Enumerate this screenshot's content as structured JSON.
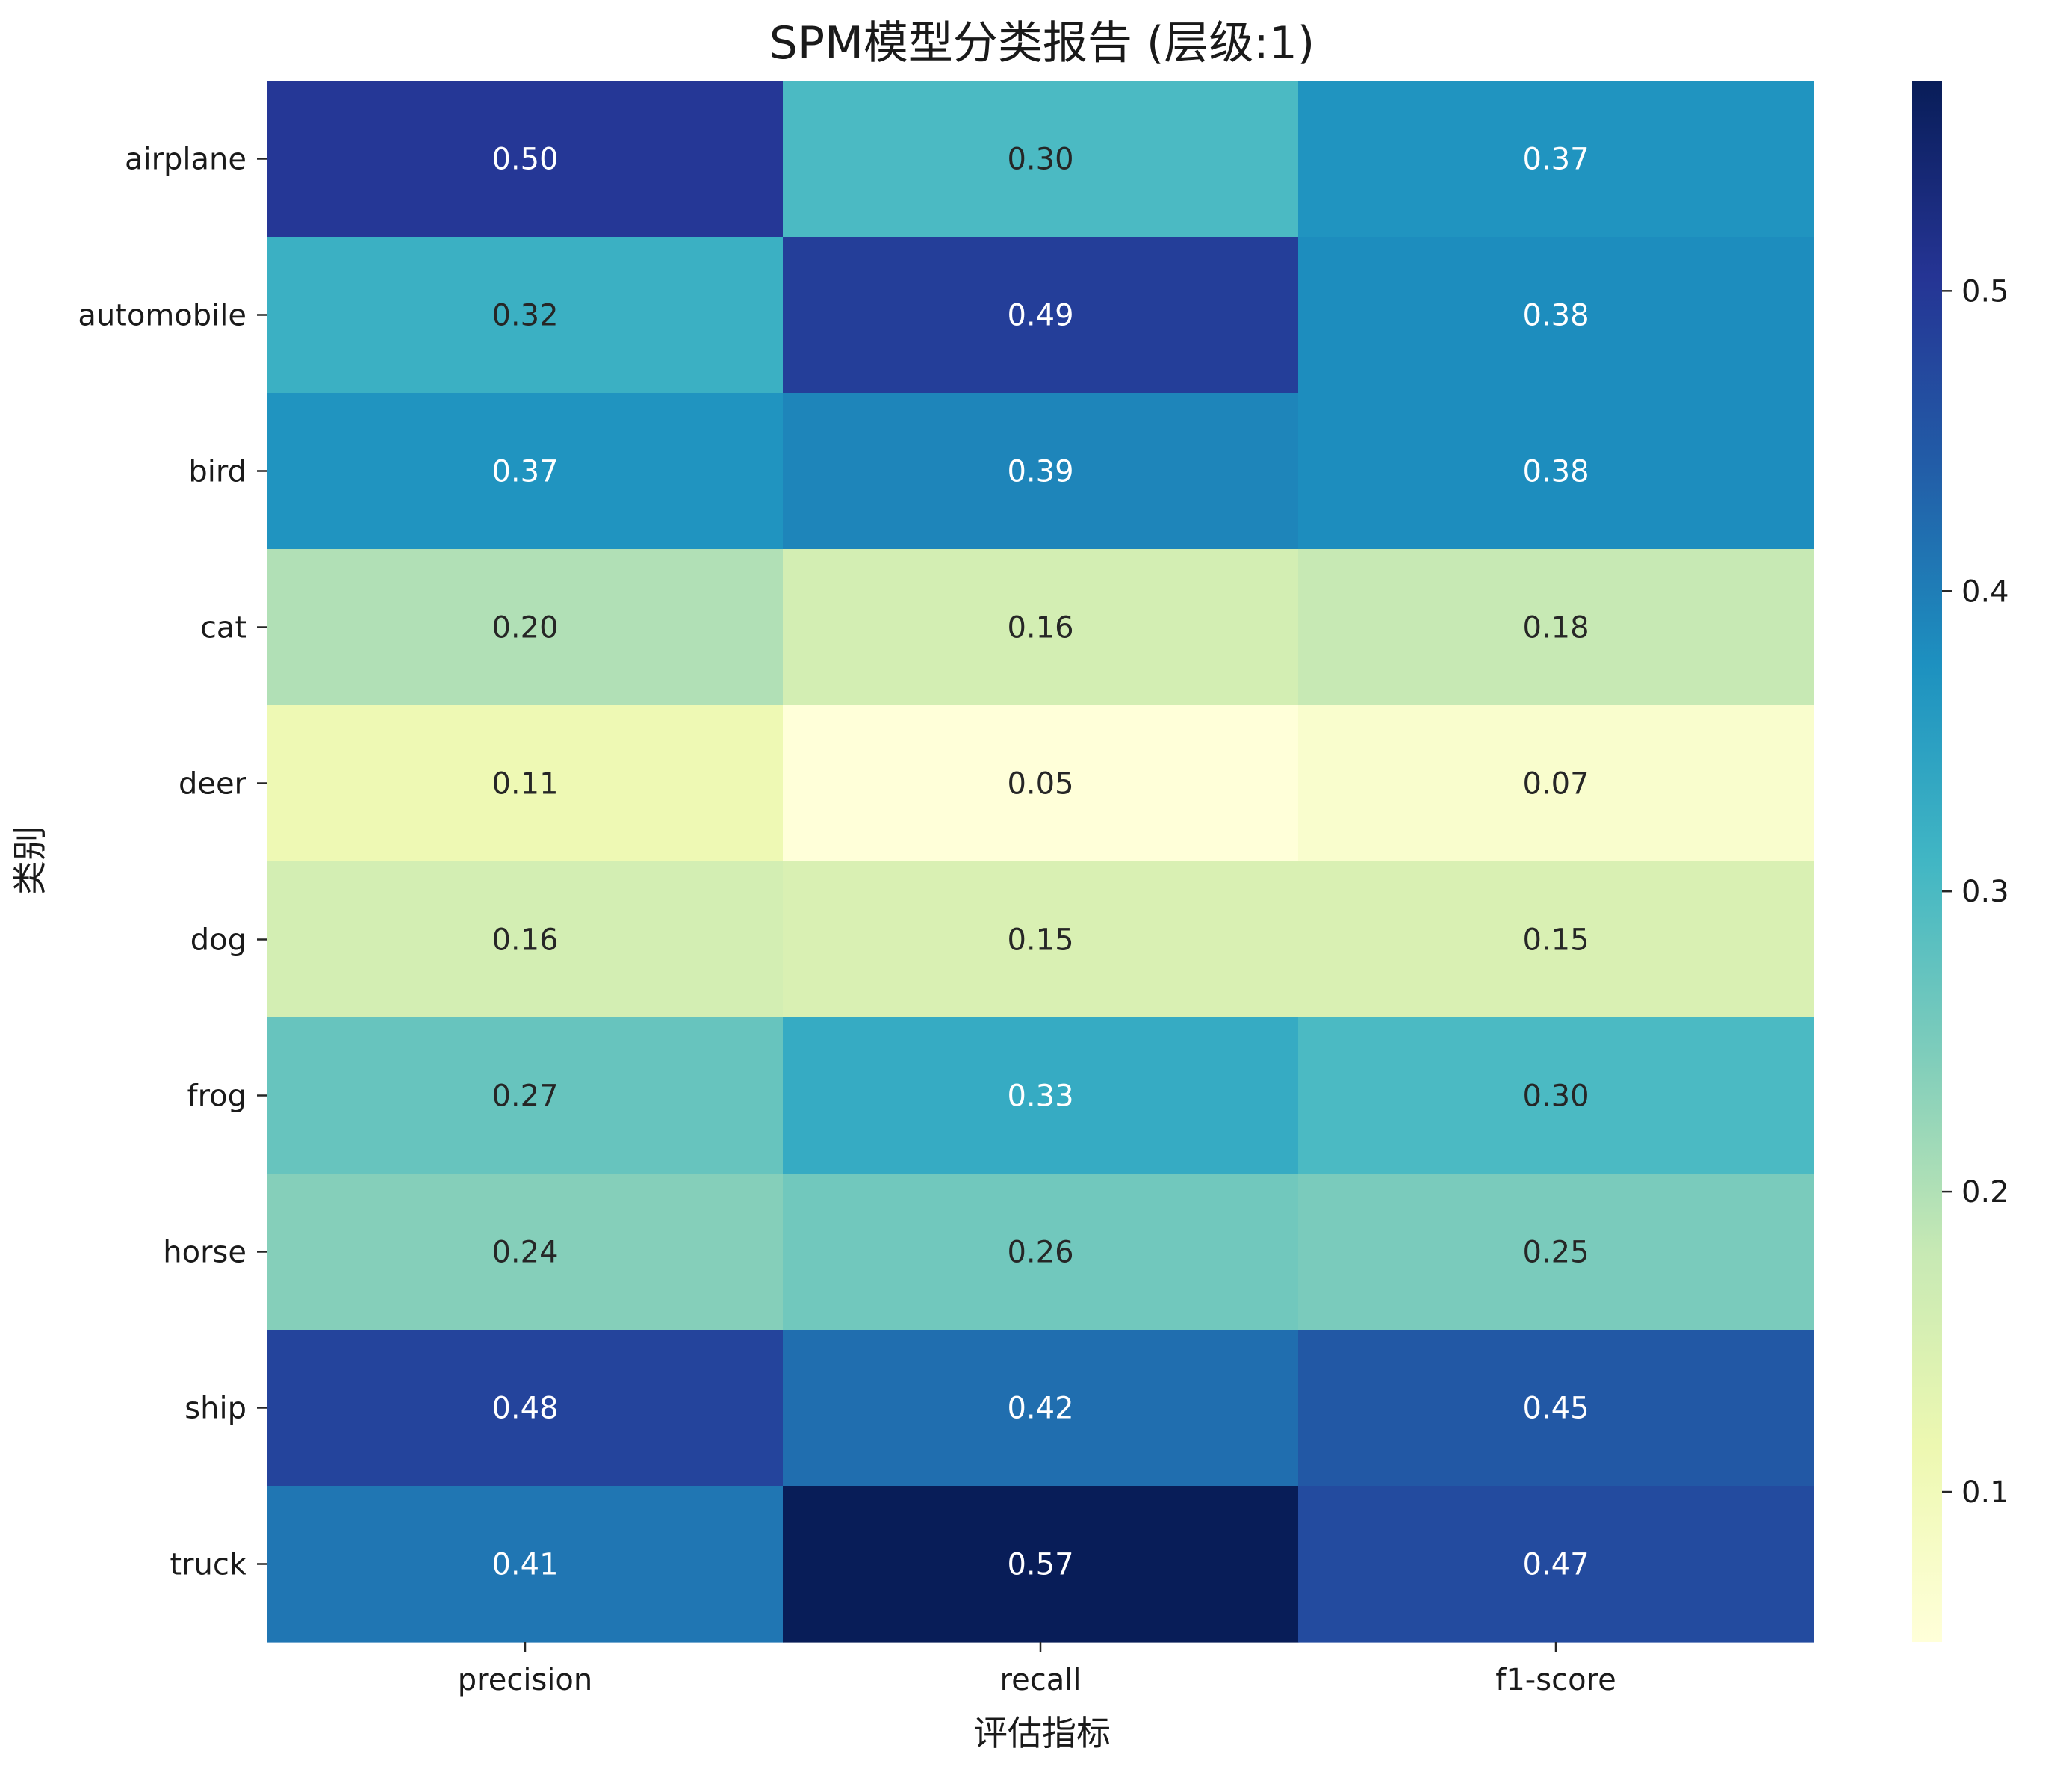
{
  "chart_data": {
    "type": "heatmap",
    "title": "SPM模型分类报告 (层级:1)",
    "xlabel": "评估指标",
    "ylabel": "类别",
    "columns": [
      "precision",
      "recall",
      "f1-score"
    ],
    "rows": [
      "airplane",
      "automobile",
      "bird",
      "cat",
      "deer",
      "dog",
      "frog",
      "horse",
      "ship",
      "truck"
    ],
    "values": [
      [
        0.5,
        0.3,
        0.37
      ],
      [
        0.32,
        0.49,
        0.38
      ],
      [
        0.37,
        0.39,
        0.38
      ],
      [
        0.2,
        0.16,
        0.18
      ],
      [
        0.11,
        0.05,
        0.07
      ],
      [
        0.16,
        0.15,
        0.15
      ],
      [
        0.27,
        0.33,
        0.3
      ],
      [
        0.24,
        0.26,
        0.25
      ],
      [
        0.48,
        0.42,
        0.45
      ],
      [
        0.41,
        0.57,
        0.47
      ]
    ],
    "annotation_format": "0.00",
    "colormap": "YlGnBu",
    "color_range": [
      0.05,
      0.57
    ],
    "colorbar": {
      "position": "right",
      "ticks": [
        0.1,
        0.2,
        0.3,
        0.4,
        0.5
      ]
    },
    "grid": false
  }
}
